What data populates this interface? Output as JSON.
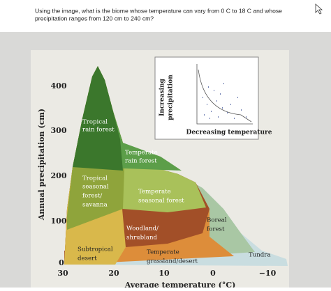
{
  "question": {
    "lines": [
      "Using the image, what is the biome whose temperature can vary from 0 C to 18 C and whose",
      "precipitation ranges from 120 cm to 240 cm?"
    ]
  },
  "diagram": {
    "y_axis_label": "Annual precipitation (cm)",
    "y_ticks": [
      "400",
      "300",
      "200",
      "100",
      "0"
    ],
    "x_axis_label": "Average temperature (°C)",
    "x_ticks": [
      "30",
      "20",
      "10",
      "0",
      "−10"
    ],
    "biomes": [
      {
        "lines": [
          "Tropical",
          "rain forest"
        ]
      },
      {
        "lines": [
          "Temperate",
          "rain forest"
        ]
      },
      {
        "lines": [
          "Tropical",
          "seasonal",
          "forest/",
          "savanna"
        ]
      },
      {
        "lines": [
          "Temperate",
          "seasonal forest"
        ]
      },
      {
        "lines": [
          "Boreal",
          "forest"
        ]
      },
      {
        "lines": [
          "Woodland/",
          "shrubland"
        ]
      },
      {
        "lines": [
          "Subtropical",
          "desert"
        ]
      },
      {
        "lines": [
          "Temperate",
          "grassland/desert"
        ]
      },
      {
        "lines": [
          "Tundra"
        ]
      }
    ],
    "inset": {
      "y_label_lines": [
        "Increasing",
        "precipitation"
      ],
      "x_label": "Decreasing temperature"
    }
  }
}
